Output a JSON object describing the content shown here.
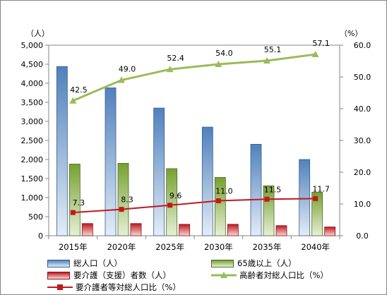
{
  "chart_data": {
    "type": "bar+line",
    "categories": [
      "2015年",
      "2020年",
      "2025年",
      "2030年",
      "2035年",
      "2040年"
    ],
    "left_axis": {
      "unit": "（人）",
      "range": [
        0,
        5000
      ],
      "ticks": [
        "0",
        "500",
        "1,000",
        "1,500",
        "2,000",
        "2,500",
        "3,000",
        "3,500",
        "4,000",
        "4,500",
        "5,000"
      ]
    },
    "right_axis": {
      "unit": "（%）",
      "range": [
        0,
        60
      ],
      "ticks": [
        "0.0",
        "10.0",
        "20.0",
        "30.0",
        "40.0",
        "50.0",
        "60.0"
      ]
    },
    "bar_series": [
      {
        "name": "総人口（人）",
        "values": [
          4440,
          3880,
          3350,
          2850,
          2400,
          2000
        ],
        "color_top": "#4f81bd",
        "color_bottom": "#e4ecf7",
        "stroke": "#385d8a"
      },
      {
        "name": "65歳以上（人）",
        "values": [
          1880,
          1900,
          1760,
          1530,
          1310,
          1140
        ],
        "color_top": "#77a031",
        "color_bottom": "#e6f0d6",
        "stroke": "#4e6b23"
      },
      {
        "name": "要介護（支援）者数（人）",
        "values": [
          320,
          320,
          300,
          300,
          265,
          230
        ],
        "color_top": "#c0191f",
        "color_bottom": "#f6d6d6",
        "stroke": "#8b1215"
      }
    ],
    "line_series": [
      {
        "name": "高齢者対総人口比（%）",
        "values": [
          42.5,
          49.0,
          52.4,
          54.0,
          55.1,
          57.1
        ],
        "labels": [
          "42.5",
          "49.0",
          "52.4",
          "54.0",
          "55.1",
          "57.1"
        ],
        "color": "#9bbb59",
        "marker": "triangle"
      },
      {
        "name": "要介護者等対総人口比（%）",
        "values": [
          7.3,
          8.3,
          9.6,
          11.0,
          11.5,
          11.7
        ],
        "labels": [
          "7.3",
          "8.3",
          "9.6",
          "11.0",
          "11.5",
          "11.7"
        ],
        "color": "#c0191f",
        "marker": "square"
      }
    ],
    "legend_position": "bottom",
    "gridlines": false,
    "title": ""
  },
  "legend": {
    "item1": "総人口（人）",
    "item2": "65歳以上（人）",
    "item3": "要介護（支援）者数（人）",
    "item4": "高齢者対総人口比（%）",
    "item5": "要介護者等対総人口比（%）"
  }
}
